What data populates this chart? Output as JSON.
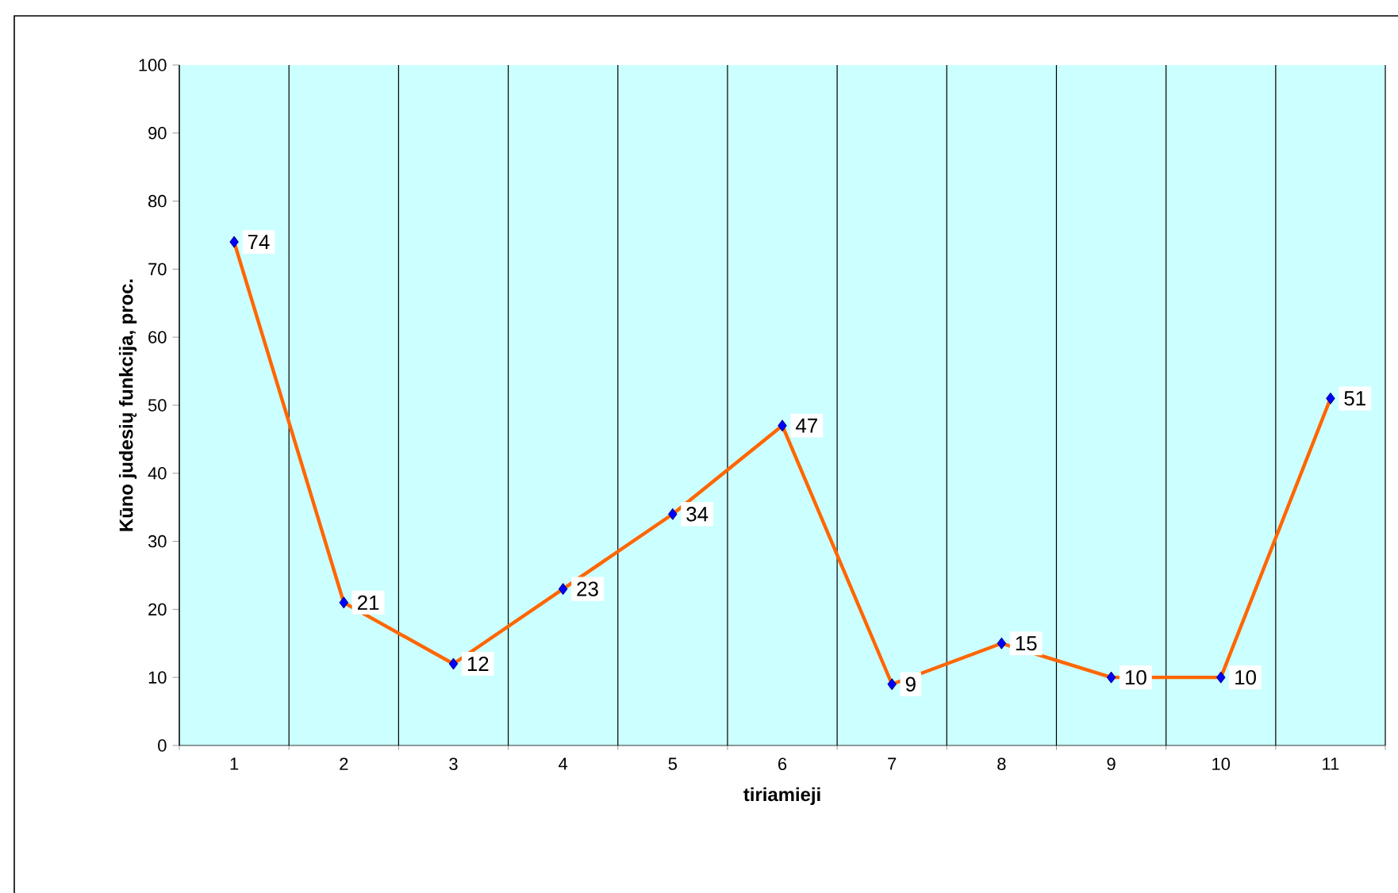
{
  "chart_data": {
    "type": "line",
    "xlabel": "tiriamieji",
    "ylabel": "Kūno judesių funkcija, proc.",
    "categories": [
      "1",
      "2",
      "3",
      "4",
      "5",
      "6",
      "7",
      "8",
      "9",
      "10",
      "11"
    ],
    "values": [
      74,
      21,
      12,
      23,
      34,
      47,
      9,
      15,
      10,
      10,
      51
    ],
    "color": "#ff6600",
    "marker": "diamond",
    "line_style": "solid",
    "data_labels": true,
    "grid": "x",
    "ylim": [
      0,
      100
    ],
    "yticks": [
      0,
      10,
      20,
      30,
      40,
      50,
      60,
      70,
      80,
      90,
      100
    ]
  }
}
